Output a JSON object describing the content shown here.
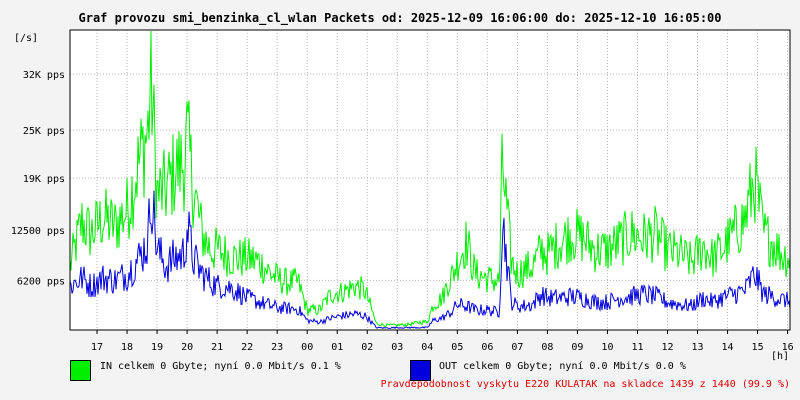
{
  "chart_data": {
    "type": "line",
    "title": "Graf provozu smi_benzinka_cl_wlan Packets od: 2025-12-09 16:06:00 do: 2025-12-10 16:05:00",
    "ylabel": "[/s]",
    "xlabel": "[h]",
    "x_ticks": [
      "17",
      "18",
      "19",
      "20",
      "21",
      "22",
      "23",
      "00",
      "01",
      "02",
      "03",
      "04",
      "05",
      "06",
      "07",
      "08",
      "09",
      "10",
      "11",
      "12",
      "13",
      "14",
      "15",
      "16"
    ],
    "y_ticks": [
      {
        "value": 6200,
        "label": "6200 pps"
      },
      {
        "value": 12500,
        "label": "12500 pps"
      },
      {
        "value": 19000,
        "label": "19K pps"
      },
      {
        "value": 25000,
        "label": "25K pps"
      },
      {
        "value": 32000,
        "label": "32K pps"
      }
    ],
    "x_range_hours": [
      16.1,
      40.08
    ],
    "ylim": [
      0,
      37500
    ],
    "grid": true,
    "series": [
      {
        "name": "IN",
        "color": "#00ee00",
        "x": [
          16.1,
          16.5,
          16.8,
          17.2,
          17.6,
          18.0,
          18.4,
          18.7,
          18.8,
          19.0,
          19.3,
          19.6,
          19.9,
          20.0,
          20.2,
          20.5,
          20.8,
          21.0,
          21.3,
          21.6,
          22.0,
          22.4,
          22.8,
          23.0,
          23.3,
          23.7,
          24.0,
          24.4,
          24.8,
          25.2,
          25.6,
          25.9,
          26.0,
          26.3,
          26.6,
          27.0,
          27.4,
          27.8,
          28.0,
          28.2,
          28.5,
          28.7,
          28.8,
          29.0,
          29.3,
          29.6,
          30.0,
          30.4,
          30.5,
          30.8,
          31.0,
          31.2,
          31.5,
          31.8,
          32.0,
          32.4,
          32.8,
          33.2,
          33.6,
          34.0,
          34.4,
          34.8,
          35.2,
          35.6,
          36.0,
          36.4,
          36.8,
          37.2,
          37.5,
          37.8,
          38.2,
          38.6,
          38.9,
          39.2,
          39.5,
          39.8,
          40.08
        ],
        "values": [
          8000,
          13500,
          12000,
          14000,
          13000,
          15000,
          21000,
          25000,
          32000,
          17000,
          17500,
          20000,
          21000,
          24000,
          18000,
          12000,
          10000,
          10000,
          9500,
          9000,
          9000,
          8500,
          7000,
          6500,
          6000,
          6000,
          2500,
          2500,
          4500,
          4800,
          5500,
          5000,
          4200,
          800,
          600,
          600,
          700,
          1000,
          1000,
          3200,
          4000,
          6000,
          6500,
          8500,
          11000,
          7000,
          6500,
          6000,
          21000,
          8500,
          7000,
          7500,
          8000,
          10000,
          9500,
          11000,
          12000,
          11500,
          10000,
          10000,
          11000,
          12000,
          11500,
          12000,
          10000,
          9500,
          8500,
          10500,
          9000,
          10000,
          12000,
          14000,
          19000,
          12000,
          11000,
          9500,
          9000
        ]
      },
      {
        "name": "OUT",
        "color": "#0000dd",
        "x": [
          16.1,
          16.5,
          16.8,
          17.2,
          17.6,
          18.0,
          18.4,
          18.7,
          18.8,
          19.0,
          19.3,
          19.6,
          19.9,
          20.0,
          20.2,
          20.5,
          20.8,
          21.0,
          21.3,
          21.6,
          22.0,
          22.4,
          22.8,
          23.0,
          23.3,
          23.7,
          24.0,
          24.4,
          24.8,
          25.2,
          25.6,
          25.9,
          26.0,
          26.3,
          26.6,
          27.0,
          27.4,
          27.8,
          28.0,
          28.2,
          28.5,
          28.7,
          28.8,
          29.0,
          29.3,
          29.6,
          30.0,
          30.4,
          30.5,
          30.8,
          31.0,
          31.2,
          31.5,
          31.8,
          32.0,
          32.4,
          32.8,
          33.2,
          33.6,
          34.0,
          34.4,
          34.8,
          35.2,
          35.6,
          36.0,
          36.4,
          36.8,
          37.2,
          37.5,
          37.8,
          38.2,
          38.6,
          38.9,
          39.2,
          39.5,
          39.8,
          40.08
        ],
        "values": [
          5500,
          6500,
          5500,
          6500,
          6200,
          7000,
          9000,
          11000,
          18000,
          10000,
          8000,
          9000,
          9500,
          13000,
          9000,
          7000,
          6000,
          5500,
          5500,
          5000,
          4000,
          3500,
          3000,
          2800,
          2700,
          2600,
          1200,
          1000,
          1500,
          1800,
          2000,
          1800,
          1600,
          300,
          250,
          300,
          300,
          300,
          300,
          1200,
          1500,
          2000,
          2200,
          3200,
          3000,
          2500,
          2500,
          2200,
          14000,
          3500,
          3000,
          3000,
          3200,
          4500,
          4000,
          4000,
          4200,
          4000,
          3500,
          3500,
          4000,
          4200,
          4500,
          4200,
          3500,
          3200,
          3000,
          4000,
          3500,
          4000,
          4500,
          5000,
          7000,
          4500,
          4200,
          3800,
          3600
        ]
      }
    ]
  },
  "legend": [
    {
      "color": "#00ee00",
      "text": "IN celkem 0 Gbyte; nyní   0.0 Mbit/s 0.1 %"
    },
    {
      "color": "#0000dd",
      "text": "OUT celkem 0 Gbyte; nyní   0.0 Mbit/s 0.0 %"
    }
  ],
  "footer": "Pravdepodobnost vyskytu E220 KULATAK na skladce 1439 z 1440 (99.9 %)"
}
